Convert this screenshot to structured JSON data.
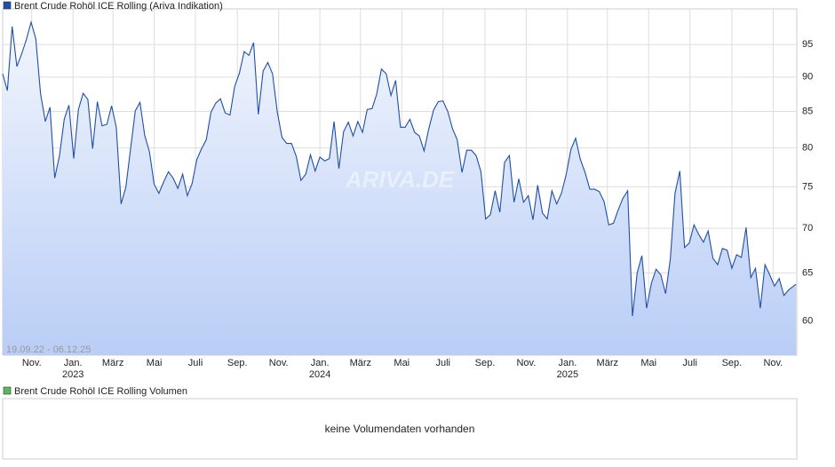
{
  "chart_data": {
    "type": "line",
    "legend": "Brent Crude Rohöl ICE Rolling (Ariva Indikation)",
    "watermark": "ARIVA.DE",
    "range_label": "19.09.22 - 06.12.25",
    "log_scale": true,
    "grid": true,
    "xlim": [
      "2022-09-19",
      "2025-12-06"
    ],
    "xticks": [
      {
        "value": "2022-11-01",
        "label": "Nov."
      },
      {
        "value": "2023-01-01",
        "label": "Jan."
      },
      {
        "value": "2023-03-01",
        "label": "März"
      },
      {
        "value": "2023-05-01",
        "label": "Mai"
      },
      {
        "value": "2023-07-01",
        "label": "Juli"
      },
      {
        "value": "2023-09-01",
        "label": "Sep."
      },
      {
        "value": "2023-11-01",
        "label": "Nov."
      },
      {
        "value": "2024-01-01",
        "label": "Jan."
      },
      {
        "value": "2024-03-01",
        "label": "März"
      },
      {
        "value": "2024-05-01",
        "label": "Mai"
      },
      {
        "value": "2024-07-01",
        "label": "Juli"
      },
      {
        "value": "2024-09-01",
        "label": "Sep."
      },
      {
        "value": "2024-11-01",
        "label": "Nov."
      },
      {
        "value": "2025-01-01",
        "label": "Jan."
      },
      {
        "value": "2025-03-01",
        "label": "März"
      },
      {
        "value": "2025-05-01",
        "label": "Mai"
      },
      {
        "value": "2025-07-01",
        "label": "Juli"
      },
      {
        "value": "2025-09-01",
        "label": "Sep."
      },
      {
        "value": "2025-11-01",
        "label": "Nov."
      }
    ],
    "year_ticks": [
      {
        "value": "2023-01-01",
        "label": "2023"
      },
      {
        "value": "2024-01-01",
        "label": "2024"
      },
      {
        "value": "2025-01-01",
        "label": "2025"
      }
    ],
    "ylim": [
      56.7,
      100.8
    ],
    "yticks": [
      60,
      65,
      70,
      75,
      80,
      85,
      90,
      95
    ],
    "x": [
      "2022-09-19",
      "2022-09-26",
      "2022-10-03",
      "2022-10-10",
      "2022-10-17",
      "2022-10-24",
      "2022-10-31",
      "2022-11-07",
      "2022-11-14",
      "2022-11-21",
      "2022-11-28",
      "2022-12-05",
      "2022-12-12",
      "2022-12-19",
      "2022-12-26",
      "2023-01-02",
      "2023-01-09",
      "2023-01-16",
      "2023-01-23",
      "2023-01-30",
      "2023-02-06",
      "2023-02-13",
      "2023-02-20",
      "2023-02-27",
      "2023-03-06",
      "2023-03-13",
      "2023-03-20",
      "2023-03-27",
      "2023-04-03",
      "2023-04-10",
      "2023-04-17",
      "2023-04-24",
      "2023-05-01",
      "2023-05-08",
      "2023-05-15",
      "2023-05-22",
      "2023-05-29",
      "2023-06-05",
      "2023-06-12",
      "2023-06-19",
      "2023-06-26",
      "2023-07-03",
      "2023-07-10",
      "2023-07-17",
      "2023-07-24",
      "2023-07-31",
      "2023-08-07",
      "2023-08-14",
      "2023-08-21",
      "2023-08-28",
      "2023-09-04",
      "2023-09-11",
      "2023-09-18",
      "2023-09-25",
      "2023-10-02",
      "2023-10-09",
      "2023-10-16",
      "2023-10-23",
      "2023-10-30",
      "2023-11-06",
      "2023-11-13",
      "2023-11-20",
      "2023-11-27",
      "2023-12-04",
      "2023-12-11",
      "2023-12-18",
      "2023-12-25",
      "2024-01-01",
      "2024-01-08",
      "2024-01-15",
      "2024-01-22",
      "2024-01-29",
      "2024-02-05",
      "2024-02-12",
      "2024-02-19",
      "2024-02-26",
      "2024-03-04",
      "2024-03-11",
      "2024-03-18",
      "2024-03-25",
      "2024-04-01",
      "2024-04-08",
      "2024-04-15",
      "2024-04-22",
      "2024-04-29",
      "2024-05-06",
      "2024-05-13",
      "2024-05-20",
      "2024-05-27",
      "2024-06-03",
      "2024-06-10",
      "2024-06-17",
      "2024-06-24",
      "2024-07-01",
      "2024-07-08",
      "2024-07-15",
      "2024-07-22",
      "2024-07-29",
      "2024-08-05",
      "2024-08-12",
      "2024-08-19",
      "2024-08-26",
      "2024-09-02",
      "2024-09-09",
      "2024-09-16",
      "2024-09-23",
      "2024-09-30",
      "2024-10-07",
      "2024-10-14",
      "2024-10-21",
      "2024-10-28",
      "2024-11-04",
      "2024-11-11",
      "2024-11-18",
      "2024-11-25",
      "2024-12-02",
      "2024-12-09",
      "2024-12-16",
      "2024-12-23",
      "2024-12-30",
      "2025-01-06",
      "2025-01-13",
      "2025-01-20",
      "2025-01-27",
      "2025-02-03",
      "2025-02-10",
      "2025-02-17",
      "2025-02-24",
      "2025-03-03",
      "2025-03-10",
      "2025-03-17",
      "2025-03-24",
      "2025-03-31",
      "2025-04-07",
      "2025-04-14",
      "2025-04-21",
      "2025-04-28",
      "2025-05-05",
      "2025-05-12",
      "2025-05-19",
      "2025-05-26",
      "2025-06-02",
      "2025-06-09",
      "2025-06-16",
      "2025-06-23",
      "2025-06-30",
      "2025-07-07",
      "2025-07-14",
      "2025-07-21",
      "2025-07-28",
      "2025-08-04",
      "2025-08-11",
      "2025-08-18",
      "2025-08-25",
      "2025-09-01",
      "2025-09-08",
      "2025-09-15",
      "2025-09-22",
      "2025-09-29",
      "2025-10-06",
      "2025-10-13",
      "2025-10-20",
      "2025-10-27",
      "2025-11-03",
      "2025-11-10",
      "2025-11-17",
      "2025-11-24",
      "2025-12-05"
    ],
    "series": [
      {
        "name": "Brent Crude Rohöl ICE Rolling",
        "color": "#1f4fa8",
        "values": [
          90.5,
          88,
          97.9,
          91.6,
          93.5,
          95.8,
          98.6,
          95.9,
          87.6,
          83.6,
          85.6,
          76.1,
          79,
          83.9,
          85.9,
          78.6,
          85.3,
          87.6,
          86.7,
          79.9,
          86.4,
          83,
          83.2,
          85.8,
          82.8,
          72.9,
          74.9,
          79.8,
          85.1,
          86.3,
          81.7,
          79.5,
          75.3,
          74.2,
          75.6,
          76.9,
          76.1,
          74.8,
          76.6,
          73.9,
          75.4,
          78.5,
          79.9,
          81.1,
          84.9,
          86.2,
          86.8,
          84.8,
          84.5,
          88.6,
          90.6,
          93.9,
          93.3,
          95.3,
          84.6,
          90.9,
          92.2,
          90.5,
          84.9,
          81.4,
          80.6,
          80.6,
          78.9,
          75.8,
          76.6,
          79.1,
          77.0,
          78.8,
          78.3,
          78.6,
          83.6,
          77.3,
          82.2,
          83.5,
          81.6,
          83.6,
          82.1,
          85.3,
          85.4,
          87.5,
          91.2,
          90.5,
          87.3,
          89.5,
          82.8,
          82.8,
          83.9,
          82.1,
          81.6,
          79.6,
          82.6,
          85.2,
          86.4,
          86.5,
          85.0,
          82.6,
          81.1,
          76.8,
          79.7,
          79.7,
          79.0,
          76.9,
          71.1,
          71.6,
          74.5,
          71.9,
          78.1,
          79.0,
          73.1,
          76.0,
          73.1,
          73.9,
          71.0,
          75.2,
          71.8,
          71.1,
          74.5,
          72.9,
          74.2,
          76.5,
          79.8,
          81.3,
          78.5,
          76.8,
          74.7,
          74.7,
          74.4,
          73.2,
          70.4,
          70.6,
          72.2,
          73.6,
          74.5,
          60.5,
          65.0,
          66.9,
          61.3,
          63.9,
          65.4,
          64.8,
          62.8,
          66.5,
          74.2,
          77.0,
          67.8,
          68.3,
          70.4,
          69.3,
          68.4,
          69.7,
          66.6,
          65.9,
          67.7,
          67.5,
          65.5,
          67.0,
          66.7,
          70.1,
          64.5,
          65.5,
          61.3,
          65.9,
          64.8,
          63.6,
          64.4,
          62.6,
          63.2,
          63.8
        ]
      }
    ],
    "volume_legend": "Brent Crude Rohöl ICE Rolling Volumen",
    "volume_legend_color": "#5cb85c",
    "volume_message": "keine Volumendaten vorhanden"
  }
}
